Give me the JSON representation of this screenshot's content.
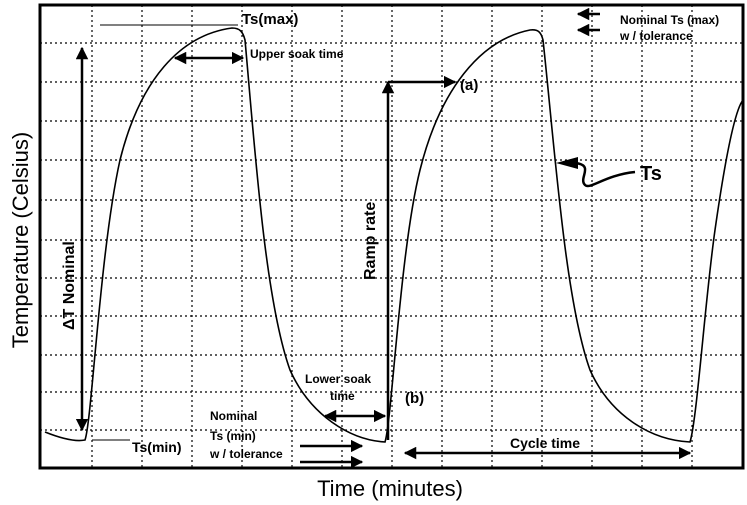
{
  "axes": {
    "y_label": "Temperature (Celsius)",
    "x_label": "Time (minutes)"
  },
  "labels": {
    "ts_max": "Ts(max)",
    "upper_soak_time": "Upper soak time",
    "nominal_ts_max": [
      "Nominal Ts (max)",
      "w / tolerance"
    ],
    "point_a": "(a)",
    "ts": "Ts",
    "delta_t_nominal": "ΔT Nominal",
    "ramp_rate": "Ramp rate",
    "lower_soak_time": [
      "Lower soak",
      "time"
    ],
    "point_b": "(b)",
    "nominal_ts_min": [
      "Nominal",
      "Ts (min)",
      "w / tolerance"
    ],
    "ts_min": "Ts(min)",
    "cycle_time": "Cycle time"
  }
}
